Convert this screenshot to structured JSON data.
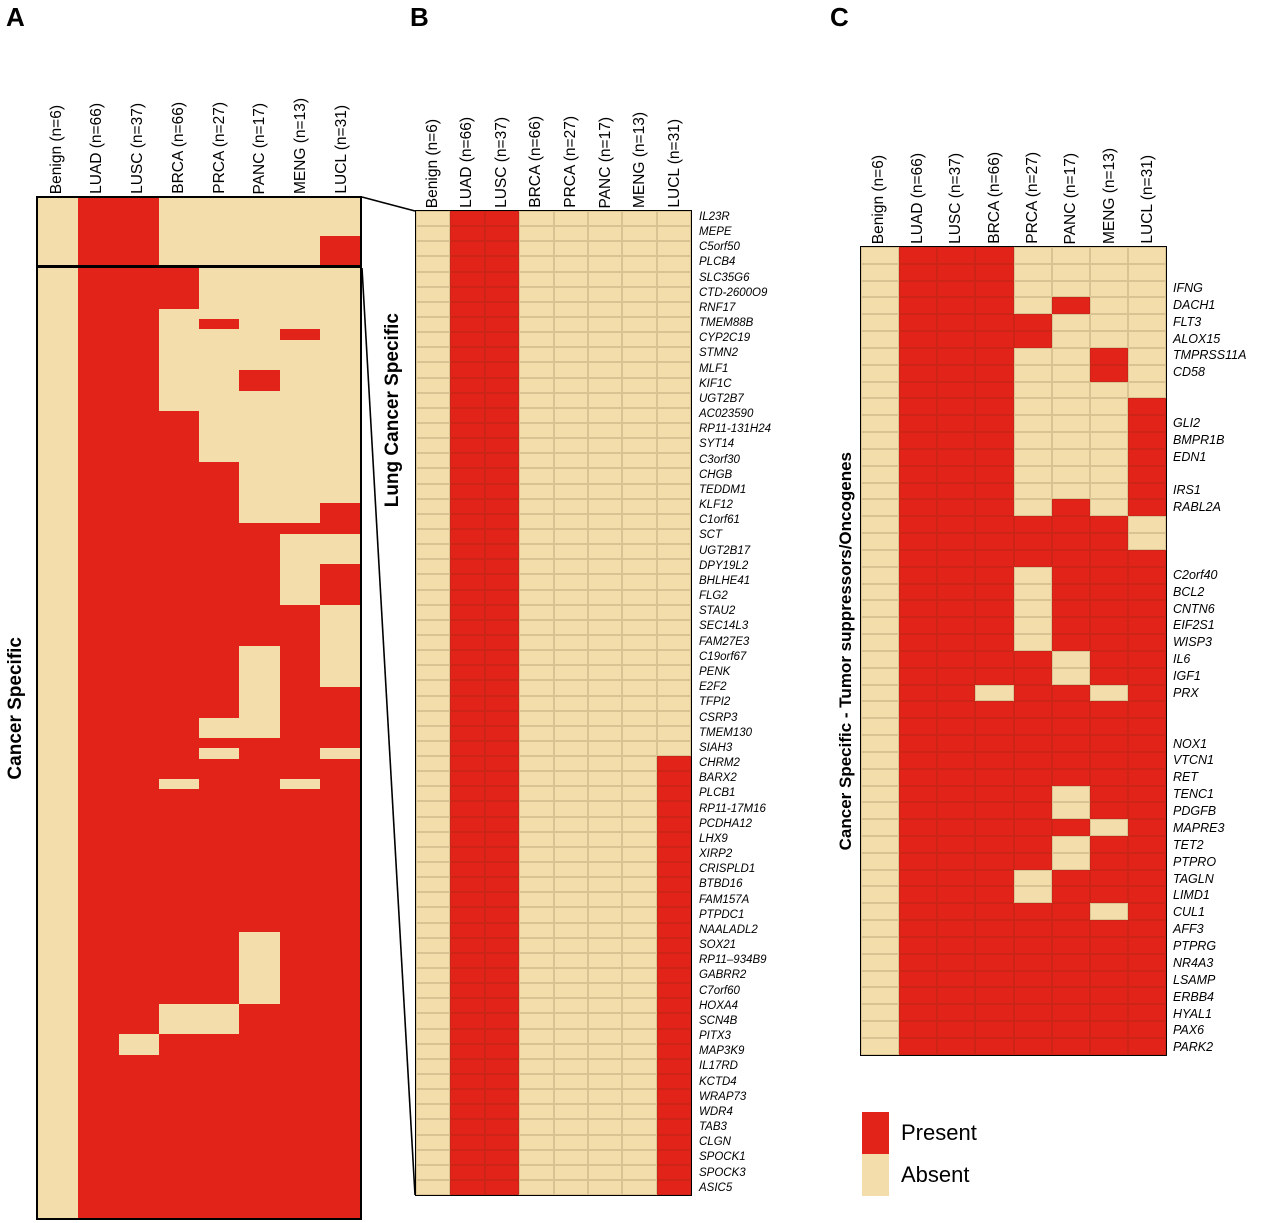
{
  "colors": {
    "present": "#e2231a",
    "absent": "#f3ddab"
  },
  "figure": {
    "panels": {
      "A": {
        "letter": "A",
        "side_label": "Cancer Specific"
      },
      "B": {
        "letter": "B",
        "side_label": "Lung Cancer Specific"
      },
      "C": {
        "letter": "C",
        "side_label": "Cancer Specific - Tumor suppressors/Oncogenes"
      }
    },
    "legend": {
      "present": "Present",
      "absent": "Absent"
    }
  },
  "chart_data": [
    {
      "id": "A",
      "type": "heatmap",
      "title": "Cancer Specific",
      "value_domain": {
        "1": "Present (red)",
        "0": "Absent (tan)"
      },
      "encoding": "pattern string, one char per column in order: Benign, LUAD, LUSC, BRCA, PRCA, PANC, MENG, LUCL",
      "columns": [
        "Benign (n=6)",
        "LUAD (n=66)",
        "LUSC (n=37)",
        "BRCA (n=66)",
        "PRCA (n=27)",
        "PANC (n=17)",
        "MENG (n=13)",
        "LUCL (n=31)"
      ],
      "top_lung_specific_row_groups": [
        {
          "n": 4,
          "p": "01100000"
        },
        {
          "n": 3,
          "p": "01100001"
        }
      ],
      "main_row_groups": [
        {
          "n": 4,
          "p": "01110000"
        },
        {
          "n": 1,
          "p": "01100000"
        },
        {
          "n": 1,
          "p": "01101000"
        },
        {
          "n": 1,
          "p": "01100010"
        },
        {
          "n": 3,
          "p": "01100000"
        },
        {
          "n": 2,
          "p": "01100100"
        },
        {
          "n": 2,
          "p": "01100000"
        },
        {
          "n": 5,
          "p": "01110000"
        },
        {
          "n": 4,
          "p": "01111000"
        },
        {
          "n": 2,
          "p": "01111001"
        },
        {
          "n": 1,
          "p": "01111111"
        },
        {
          "n": 3,
          "p": "01111100"
        },
        {
          "n": 4,
          "p": "01111101"
        },
        {
          "n": 4,
          "p": "01111110"
        },
        {
          "n": 4,
          "p": "01111010"
        },
        {
          "n": 3,
          "p": "01111011"
        },
        {
          "n": 2,
          "p": "01110011"
        },
        {
          "n": 1,
          "p": "01111111"
        },
        {
          "n": 1,
          "p": "01110110"
        },
        {
          "n": 2,
          "p": "01111111"
        },
        {
          "n": 1,
          "p": "01101101"
        },
        {
          "n": 14,
          "p": "01111111"
        },
        {
          "n": 7,
          "p": "01111011"
        },
        {
          "n": 3,
          "p": "01100111"
        },
        {
          "n": 2,
          "p": "01011111"
        },
        {
          "n": 16,
          "p": "01111111"
        }
      ]
    },
    {
      "id": "B",
      "type": "heatmap",
      "title": "Lung Cancer Specific",
      "value_domain": {
        "1": "Present (red)",
        "0": "Absent (tan)"
      },
      "encoding": "pattern string, one char per column in order: Benign, LUAD, LUSC, BRCA, PRCA, PANC, MENG, LUCL",
      "columns": [
        "Benign (n=6)",
        "LUAD (n=66)",
        "LUSC (n=37)",
        "BRCA (n=66)",
        "PRCA (n=27)",
        "PANC (n=17)",
        "MENG (n=13)",
        "LUCL (n=31)"
      ],
      "rows": [
        {
          "gene": "IL23R",
          "p": "01100000"
        },
        {
          "gene": "MEPE",
          "p": "01100000"
        },
        {
          "gene": "C5orf50",
          "p": "01100000"
        },
        {
          "gene": "PLCB4",
          "p": "01100000"
        },
        {
          "gene": "SLC35G6",
          "p": "01100000"
        },
        {
          "gene": "CTD-2600O9",
          "p": "01100000"
        },
        {
          "gene": "RNF17",
          "p": "01100000"
        },
        {
          "gene": "TMEM88B",
          "p": "01100000"
        },
        {
          "gene": "CYP2C19",
          "p": "01100000"
        },
        {
          "gene": "STMN2",
          "p": "01100000"
        },
        {
          "gene": "MLF1",
          "p": "01100000"
        },
        {
          "gene": "KIF1C",
          "p": "01100000"
        },
        {
          "gene": "UGT2B7",
          "p": "01100000"
        },
        {
          "gene": "AC023590",
          "p": "01100000"
        },
        {
          "gene": "RP11-131H24",
          "p": "01100000"
        },
        {
          "gene": "SYT14",
          "p": "01100000"
        },
        {
          "gene": "C3orf30",
          "p": "01100000"
        },
        {
          "gene": "CHGB",
          "p": "01100000"
        },
        {
          "gene": "TEDDM1",
          "p": "01100000"
        },
        {
          "gene": "KLF12",
          "p": "01100000"
        },
        {
          "gene": "C1orf61",
          "p": "01100000"
        },
        {
          "gene": "SCT",
          "p": "01100000"
        },
        {
          "gene": "UGT2B17",
          "p": "01100000"
        },
        {
          "gene": "DPY19L2",
          "p": "01100000"
        },
        {
          "gene": "BHLHE41",
          "p": "01100000"
        },
        {
          "gene": "FLG2",
          "p": "01100000"
        },
        {
          "gene": "STAU2",
          "p": "01100000"
        },
        {
          "gene": "SEC14L3",
          "p": "01100000"
        },
        {
          "gene": "FAM27E3",
          "p": "01100000"
        },
        {
          "gene": "C19orf67",
          "p": "01100000"
        },
        {
          "gene": "PENK",
          "p": "01100000"
        },
        {
          "gene": "E2F2",
          "p": "01100000"
        },
        {
          "gene": "TFPI2",
          "p": "01100000"
        },
        {
          "gene": "CSRP3",
          "p": "01100000"
        },
        {
          "gene": "TMEM130",
          "p": "01100000"
        },
        {
          "gene": "SIAH3",
          "p": "01100000"
        },
        {
          "gene": "CHRM2",
          "p": "01100001"
        },
        {
          "gene": "BARX2",
          "p": "01100001"
        },
        {
          "gene": "PLCB1",
          "p": "01100001"
        },
        {
          "gene": "RP11-17M16",
          "p": "01100001"
        },
        {
          "gene": "PCDHA12",
          "p": "01100001"
        },
        {
          "gene": "LHX9",
          "p": "01100001"
        },
        {
          "gene": "XIRP2",
          "p": "01100001"
        },
        {
          "gene": "CRISPLD1",
          "p": "01100001"
        },
        {
          "gene": "BTBD16",
          "p": "01100001"
        },
        {
          "gene": "FAM157A",
          "p": "01100001"
        },
        {
          "gene": "PTPDC1",
          "p": "01100001"
        },
        {
          "gene": "NAALADL2",
          "p": "01100001"
        },
        {
          "gene": "SOX21",
          "p": "01100001"
        },
        {
          "gene": "RP11–934B9",
          "p": "01100001"
        },
        {
          "gene": "GABRR2",
          "p": "01100001"
        },
        {
          "gene": "C7orf60",
          "p": "01100001"
        },
        {
          "gene": "HOXA4",
          "p": "01100001"
        },
        {
          "gene": "SCN4B",
          "p": "01100001"
        },
        {
          "gene": "PITX3",
          "p": "01100001"
        },
        {
          "gene": "MAP3K9",
          "p": "01100001"
        },
        {
          "gene": "IL17RD",
          "p": "01100001"
        },
        {
          "gene": "KCTD4",
          "p": "01100001"
        },
        {
          "gene": "WRAP73",
          "p": "01100001"
        },
        {
          "gene": "WDR4",
          "p": "01100001"
        },
        {
          "gene": "TAB3",
          "p": "01100001"
        },
        {
          "gene": "CLGN",
          "p": "01100001"
        },
        {
          "gene": "SPOCK1",
          "p": "01100001"
        },
        {
          "gene": "SPOCK3",
          "p": "01100001"
        },
        {
          "gene": "ASIC5",
          "p": "01100001"
        }
      ]
    },
    {
      "id": "C",
      "type": "heatmap",
      "title": "Cancer Specific - Tumor suppressors/Oncogenes",
      "value_domain": {
        "1": "Present (red)",
        "0": "Absent (tan)"
      },
      "encoding": "pattern string, one char per column in order: Benign, LUAD, LUSC, BRCA, PRCA, PANC, MENG, LUCL; empty gene = unlabeled row",
      "columns": [
        "Benign (n=6)",
        "LUAD (n=66)",
        "LUSC (n=37)",
        "BRCA (n=66)",
        "PRCA (n=27)",
        "PANC (n=17)",
        "MENG (n=13)",
        "LUCL (n=31)"
      ],
      "rows": [
        {
          "gene": "",
          "p": "01110000"
        },
        {
          "gene": "",
          "p": "01110000"
        },
        {
          "gene": "IFNG",
          "p": "01110000"
        },
        {
          "gene": "DACH1",
          "p": "01110100"
        },
        {
          "gene": "FLT3",
          "p": "01111000"
        },
        {
          "gene": "ALOX15",
          "p": "01111000"
        },
        {
          "gene": "TMPRSS11A",
          "p": "01110010"
        },
        {
          "gene": "CD58",
          "p": "01110010"
        },
        {
          "gene": "",
          "p": "01110000"
        },
        {
          "gene": "",
          "p": "01110001"
        },
        {
          "gene": "GLI2",
          "p": "01110001"
        },
        {
          "gene": "BMPR1B",
          "p": "01110001"
        },
        {
          "gene": "EDN1",
          "p": "01110001"
        },
        {
          "gene": "",
          "p": "01110001"
        },
        {
          "gene": "IRS1",
          "p": "01110001"
        },
        {
          "gene": "RABL2A",
          "p": "01110101"
        },
        {
          "gene": "",
          "p": "01111110"
        },
        {
          "gene": "",
          "p": "01111110"
        },
        {
          "gene": "",
          "p": "01111111"
        },
        {
          "gene": "C2orf40",
          "p": "01110111"
        },
        {
          "gene": "BCL2",
          "p": "01110111"
        },
        {
          "gene": "CNTN6",
          "p": "01110111"
        },
        {
          "gene": "EIF2S1",
          "p": "01110111"
        },
        {
          "gene": "WISP3",
          "p": "01110111"
        },
        {
          "gene": "IL6",
          "p": "01111011"
        },
        {
          "gene": "IGF1",
          "p": "01111011"
        },
        {
          "gene": "PRX",
          "p": "01101101"
        },
        {
          "gene": "",
          "p": "01111111"
        },
        {
          "gene": "",
          "p": "01111111"
        },
        {
          "gene": "NOX1",
          "p": "01111111"
        },
        {
          "gene": "VTCN1",
          "p": "01111111"
        },
        {
          "gene": "RET",
          "p": "01111111"
        },
        {
          "gene": "TENC1",
          "p": "01111011"
        },
        {
          "gene": "PDGFB",
          "p": "01111011"
        },
        {
          "gene": "MAPRE3",
          "p": "01111101"
        },
        {
          "gene": "TET2",
          "p": "01111011"
        },
        {
          "gene": "PTPRO",
          "p": "01111011"
        },
        {
          "gene": "TAGLN",
          "p": "01110111"
        },
        {
          "gene": "LIMD1",
          "p": "01110111"
        },
        {
          "gene": "CUL1",
          "p": "01111101"
        },
        {
          "gene": "AFF3",
          "p": "01111111"
        },
        {
          "gene": "PTPRG",
          "p": "01111111"
        },
        {
          "gene": "NR4A3",
          "p": "01111111"
        },
        {
          "gene": "LSAMP",
          "p": "01111111"
        },
        {
          "gene": "ERBB4",
          "p": "01111111"
        },
        {
          "gene": "HYAL1",
          "p": "01111111"
        },
        {
          "gene": "PAX6",
          "p": "01111111"
        },
        {
          "gene": "PARK2",
          "p": "01111111"
        }
      ]
    }
  ]
}
